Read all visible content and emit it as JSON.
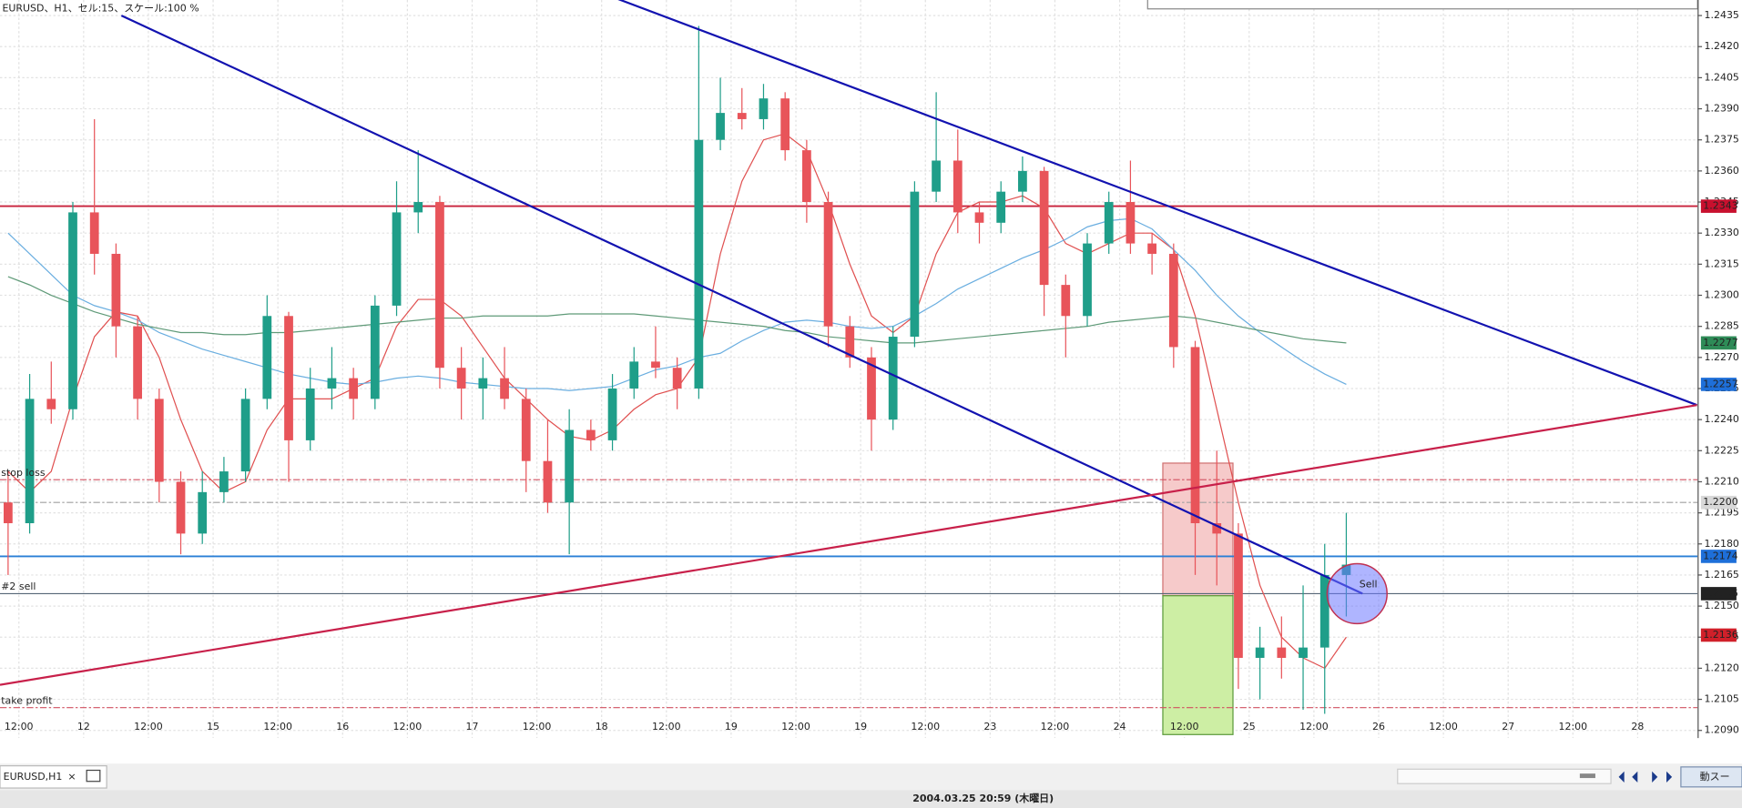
{
  "chart_data": {
    "type": "candlestick",
    "title": "EURUSD、H1、セル:15、スケール:100 %",
    "x": [
      -2,
      2,
      6,
      10,
      14,
      18,
      22,
      26,
      30,
      34,
      38,
      42,
      46,
      50,
      54,
      58,
      62,
      66,
      70,
      74,
      78,
      82,
      86,
      90,
      94,
      98,
      102,
      106,
      110,
      114,
      118,
      122,
      126,
      130,
      134,
      138,
      142,
      146,
      150,
      154,
      158,
      162,
      166,
      170,
      174,
      178,
      182,
      186,
      190,
      194,
      198,
      202,
      206,
      210,
      214,
      218,
      222,
      226,
      230,
      234,
      238,
      242,
      246
    ],
    "open": [
      1.22,
      1.219,
      1.225,
      1.2245,
      1.234,
      1.232,
      1.2285,
      1.225,
      1.221,
      1.2185,
      1.2205,
      1.2215,
      1.225,
      1.229,
      1.223,
      1.2255,
      1.226,
      1.225,
      1.2295,
      1.234,
      1.2345,
      1.2265,
      1.2255,
      1.226,
      1.225,
      1.222,
      1.22,
      1.2235,
      1.223,
      1.2255,
      1.2268,
      1.2265,
      1.2255,
      1.2375,
      1.2388,
      1.2385,
      1.2395,
      1.237,
      1.2345,
      1.2285,
      1.227,
      1.224,
      1.228,
      1.235,
      1.2365,
      1.234,
      1.2335,
      1.235,
      1.236,
      1.2305,
      1.229,
      1.2325,
      1.2345,
      1.2325,
      1.232,
      1.2275,
      1.219,
      1.2185,
      1.2125,
      1.213,
      1.2125,
      1.213,
      1.2165
    ],
    "high": [
      1.2215,
      1.2262,
      1.2268,
      1.2345,
      1.2385,
      1.2325,
      1.229,
      1.2255,
      1.2215,
      1.2215,
      1.2222,
      1.2255,
      1.23,
      1.2292,
      1.2265,
      1.2275,
      1.2265,
      1.23,
      1.2355,
      1.237,
      1.2348,
      1.2275,
      1.227,
      1.2275,
      1.2255,
      1.224,
      1.2245,
      1.224,
      1.2262,
      1.2275,
      1.2285,
      1.227,
      1.243,
      1.2405,
      1.24,
      1.2402,
      1.2398,
      1.2375,
      1.235,
      1.229,
      1.2275,
      1.2285,
      1.2355,
      1.2398,
      1.238,
      1.2345,
      1.2355,
      1.2367,
      1.2362,
      1.231,
      1.233,
      1.235,
      1.2365,
      1.233,
      1.2325,
      1.2278,
      1.2225,
      1.219,
      1.214,
      1.2145,
      1.216,
      1.218,
      1.2195
    ],
    "low": [
      1.2165,
      1.2185,
      1.2238,
      1.224,
      1.231,
      1.227,
      1.224,
      1.22,
      1.2175,
      1.218,
      1.22,
      1.221,
      1.2245,
      1.221,
      1.2225,
      1.2245,
      1.224,
      1.2245,
      1.229,
      1.233,
      1.2255,
      1.224,
      1.224,
      1.2245,
      1.2205,
      1.2195,
      1.2175,
      1.2225,
      1.2225,
      1.225,
      1.226,
      1.2245,
      1.225,
      1.237,
      1.238,
      1.238,
      1.2365,
      1.2335,
      1.2275,
      1.2265,
      1.2225,
      1.2235,
      1.2275,
      1.2345,
      1.233,
      1.2325,
      1.233,
      1.2345,
      1.229,
      1.227,
      1.2285,
      1.232,
      1.232,
      1.231,
      1.2265,
      1.2165,
      1.216,
      1.211,
      1.2105,
      1.2115,
      1.21,
      1.2098,
      1.2145
    ],
    "close": [
      1.219,
      1.225,
      1.2245,
      1.234,
      1.232,
      1.2285,
      1.225,
      1.221,
      1.2185,
      1.2205,
      1.2215,
      1.225,
      1.229,
      1.223,
      1.2255,
      1.226,
      1.225,
      1.2295,
      1.234,
      1.2345,
      1.2265,
      1.2255,
      1.226,
      1.225,
      1.222,
      1.22,
      1.2235,
      1.223,
      1.2255,
      1.2268,
      1.2265,
      1.2255,
      1.2375,
      1.2388,
      1.2385,
      1.2395,
      1.237,
      1.2345,
      1.2285,
      1.227,
      1.224,
      1.228,
      1.235,
      1.2365,
      1.234,
      1.2335,
      1.235,
      1.236,
      1.2305,
      1.229,
      1.2325,
      1.2345,
      1.2325,
      1.232,
      1.2275,
      1.219,
      1.2185,
      1.2125,
      1.213,
      1.2125,
      1.213,
      1.2165,
      1.217
    ],
    "up_color": "#1f9e89",
    "down_color": "#e8545a",
    "series": [
      {
        "color": "#e05050",
        "values": [
          1.2215,
          1.2205,
          1.2215,
          1.225,
          1.228,
          1.2292,
          1.229,
          1.227,
          1.224,
          1.2215,
          1.2205,
          1.221,
          1.2235,
          1.225,
          1.225,
          1.225,
          1.2255,
          1.226,
          1.2285,
          1.2298,
          1.2298,
          1.229,
          1.2275,
          1.226,
          1.225,
          1.224,
          1.2232,
          1.223,
          1.2235,
          1.2245,
          1.2252,
          1.2255,
          1.227,
          1.232,
          1.2355,
          1.2375,
          1.2378,
          1.237,
          1.2345,
          1.2315,
          1.229,
          1.2282,
          1.229,
          1.232,
          1.234,
          1.2345,
          1.2345,
          1.2348,
          1.2342,
          1.2325,
          1.232,
          1.2325,
          1.233,
          1.233,
          1.2322,
          1.229,
          1.2245,
          1.22,
          1.216,
          1.2135,
          1.2125,
          1.212,
          1.2135
        ]
      },
      {
        "color": "#6aaee0",
        "values": [
          1.233,
          1.232,
          1.231,
          1.23,
          1.2295,
          1.2292,
          1.2288,
          1.2282,
          1.2278,
          1.2274,
          1.2271,
          1.2268,
          1.2265,
          1.2262,
          1.226,
          1.2258,
          1.2257,
          1.2258,
          1.226,
          1.2261,
          1.226,
          1.2258,
          1.2257,
          1.2256,
          1.2255,
          1.2255,
          1.2254,
          1.2255,
          1.2256,
          1.226,
          1.2264,
          1.2266,
          1.227,
          1.2272,
          1.2278,
          1.2283,
          1.2287,
          1.2288,
          1.2287,
          1.2285,
          1.2284,
          1.2285,
          1.229,
          1.2296,
          1.2303,
          1.2308,
          1.2313,
          1.2318,
          1.2322,
          1.2327,
          1.2333,
          1.2336,
          1.2337,
          1.2332,
          1.2322,
          1.2312,
          1.23,
          1.229,
          1.2282,
          1.2275,
          1.2268,
          1.2262,
          1.2257
        ]
      },
      {
        "color": "#5f9a78",
        "values": [
          1.2309,
          1.2305,
          1.23,
          1.2296,
          1.2292,
          1.2289,
          1.2286,
          1.2284,
          1.2282,
          1.2282,
          1.2281,
          1.2281,
          1.2282,
          1.2282,
          1.2283,
          1.2284,
          1.2285,
          1.2286,
          1.2287,
          1.2288,
          1.2289,
          1.2289,
          1.229,
          1.229,
          1.229,
          1.229,
          1.2291,
          1.2291,
          1.2291,
          1.2291,
          1.229,
          1.2289,
          1.2288,
          1.2287,
          1.2286,
          1.2285,
          1.2283,
          1.2282,
          1.228,
          1.2279,
          1.2278,
          1.2277,
          1.2277,
          1.2278,
          1.2279,
          1.228,
          1.2281,
          1.2282,
          1.2283,
          1.2284,
          1.2285,
          1.2287,
          1.2288,
          1.2289,
          1.229,
          1.2289,
          1.2287,
          1.2285,
          1.2283,
          1.2281,
          1.2279,
          1.2278,
          1.2277
        ]
      }
    ],
    "xlim": [
      -3.5,
      311.1
    ],
    "xticks": [
      {
        "value": 0,
        "label": "12:00"
      },
      {
        "value": 12,
        "label": "12"
      },
      {
        "value": 24,
        "label": "12:00"
      },
      {
        "value": 36,
        "label": "15"
      },
      {
        "value": 48,
        "label": "12:00"
      },
      {
        "value": 60,
        "label": "16"
      },
      {
        "value": 72,
        "label": "12:00"
      },
      {
        "value": 84,
        "label": "17"
      },
      {
        "value": 96,
        "label": "12:00"
      },
      {
        "value": 108,
        "label": "18"
      },
      {
        "value": 120,
        "label": "12:00"
      },
      {
        "value": 132,
        "label": "19"
      },
      {
        "value": 144,
        "label": "12:00"
      },
      {
        "value": 156,
        "label": "19"
      },
      {
        "value": 168,
        "label": "12:00"
      },
      {
        "value": 180,
        "label": "23"
      },
      {
        "value": 192,
        "label": "12:00"
      },
      {
        "value": 204,
        "label": "24"
      },
      {
        "value": 216,
        "label": "12:00"
      },
      {
        "value": 228,
        "label": "25"
      },
      {
        "value": 240,
        "label": "12:00"
      },
      {
        "value": 252,
        "label": "26"
      },
      {
        "value": 264,
        "label": "12:00"
      },
      {
        "value": 276,
        "label": "27"
      },
      {
        "value": 288,
        "label": "12:00"
      },
      {
        "value": 300,
        "label": "28"
      }
    ],
    "ylim": [
      1.20863,
      1.24425
    ],
    "yticks": [
      {
        "value": 1.209,
        "label": "1.2090"
      },
      1.2105,
      {
        "value": 1.212,
        "label": "1.2120"
      },
      1.2135,
      {
        "value": 1.215,
        "label": "1.2150"
      },
      1.2165,
      {
        "value": 1.218,
        "label": "1.2180"
      },
      1.2195,
      {
        "value": 1.221,
        "label": "1.2210"
      },
      1.2225,
      {
        "value": 1.224,
        "label": "1.2240"
      },
      1.2255,
      {
        "value": 1.227,
        "label": "1.2270"
      },
      1.2285,
      {
        "value": 1.23,
        "label": "1.2300"
      },
      1.2315,
      {
        "value": 1.233,
        "label": "1.2330"
      },
      1.2345,
      {
        "value": 1.236,
        "label": "1.2360"
      },
      1.2375,
      {
        "value": 1.239,
        "label": "1.2390"
      },
      1.2405,
      {
        "value": 1.242,
        "label": "1.2420"
      },
      1.2435
    ],
    "grid": true,
    "horizontal_lines": [
      {
        "value": 1.2343,
        "color": "#c8203a",
        "style": "solid"
      },
      {
        "value": 1.2174,
        "color": "#2a7fd6",
        "style": "solid"
      },
      {
        "name": "stop loss",
        "value": 1.2211,
        "color": "#d05060",
        "style": "dashdot"
      },
      {
        "value": 1.22,
        "color": "#a0a0a0",
        "style": "dashdot"
      },
      {
        "name": "#2 sell",
        "value": 1.2156,
        "color": "#556677",
        "style": "thin"
      },
      {
        "name": "take profit",
        "value": 1.2101,
        "color": "#d05060",
        "style": "dashdot"
      }
    ],
    "price_tags": [
      {
        "value": 1.2343,
        "color": "#c8102e"
      },
      {
        "value": 1.2277,
        "color": "#2e8b57"
      },
      {
        "value": 1.2257,
        "color": "#1e6fd9"
      },
      {
        "value": 1.22,
        "label": "1.2200",
        "color": "#d8d8d8"
      },
      {
        "value": 1.2174,
        "color": "#1e6fd9"
      },
      {
        "value": 1.2156,
        "color": "#222222"
      },
      {
        "value": 1.2136,
        "color": "#d0202a"
      }
    ],
    "trendlines": [
      {
        "x": [
          19,
          249
        ],
        "y": [
          1.2435,
          1.2156
        ],
        "color": "#1212b0"
      },
      {
        "x": [
          111,
          311
        ],
        "y": [
          1.2443,
          1.2247
        ],
        "color": "#1212b0"
      },
      {
        "x": [
          -3.5,
          311
        ],
        "y": [
          1.2112,
          1.2247
        ],
        "color": "#c8204a"
      }
    ],
    "boxes": [
      {
        "x": [
          212,
          225
        ],
        "y": [
          1.2219,
          1.2155
        ],
        "color": "#f6caca",
        "border": "#d07070"
      },
      {
        "x": [
          212,
          225
        ],
        "y": [
          1.2155,
          1.2088
        ],
        "color": "#cdeea4",
        "border": "#5a9a3a"
      }
    ],
    "signal": {
      "x": 248,
      "price": 1.2156,
      "label": "Sell"
    }
  },
  "ui": {
    "tab": "EURUSD,H1",
    "tab_close": "×",
    "zoom_button": "動スー",
    "status": "2004.03.25 20:59 (木曜日)"
  }
}
